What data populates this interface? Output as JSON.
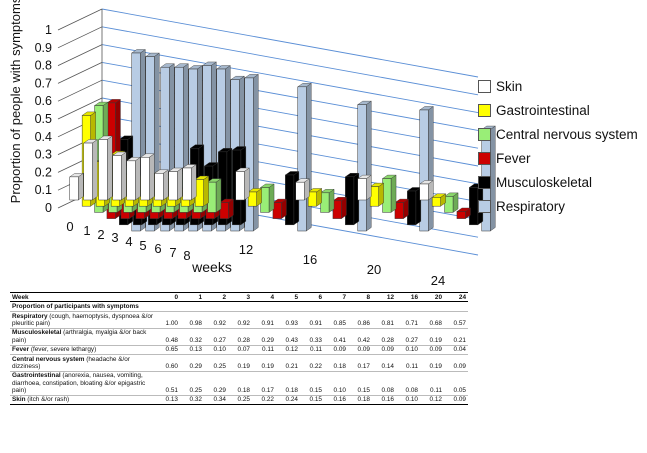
{
  "chart_data": {
    "type": "bar",
    "title": "",
    "xlabel": "weeks",
    "ylabel": "Proportion of people with symptoms",
    "ylim": [
      0,
      1
    ],
    "yticks": [
      "0",
      "0.1",
      "0.2",
      "0.3",
      "0.4",
      "0.5",
      "0.6",
      "0.7",
      "0.8",
      "0.9",
      "1"
    ],
    "categories": [
      "0",
      "1",
      "2",
      "3",
      "4",
      "5",
      "6",
      "7",
      "8",
      "12",
      "16",
      "20",
      "24"
    ],
    "legend_position": "right",
    "series": [
      {
        "name": "Skin",
        "color": "#ffffff",
        "values": [
          0.13,
          0.32,
          0.34,
          0.25,
          0.22,
          0.24,
          0.15,
          0.16,
          0.18,
          0.16,
          0.1,
          0.12,
          0.09
        ]
      },
      {
        "name": "Gastrointestinal",
        "color": "#ffff00",
        "values": [
          0.51,
          0.25,
          0.29,
          0.18,
          0.17,
          0.18,
          0.15,
          0.1,
          0.15,
          0.08,
          0.08,
          0.11,
          0.05
        ]
      },
      {
        "name": "Central nervous system",
        "color": "#99ee77",
        "values": [
          0.6,
          0.29,
          0.25,
          0.19,
          0.19,
          0.21,
          0.22,
          0.18,
          0.17,
          0.14,
          0.11,
          0.19,
          0.09
        ]
      },
      {
        "name": "Fever",
        "color": "#cc0000",
        "values": [
          0.65,
          0.13,
          0.1,
          0.07,
          0.11,
          0.12,
          0.11,
          0.09,
          0.09,
          0.09,
          0.1,
          0.09,
          0.04
        ]
      },
      {
        "name": "Musculoskeletal",
        "color": "#000000",
        "values": [
          0.48,
          0.32,
          0.27,
          0.28,
          0.29,
          0.43,
          0.33,
          0.41,
          0.42,
          0.28,
          0.27,
          0.19,
          0.21
        ]
      },
      {
        "name": "Respiratory",
        "color": "#b8cce4",
        "values": [
          1.0,
          0.98,
          0.92,
          0.92,
          0.91,
          0.93,
          0.91,
          0.85,
          0.86,
          0.81,
          0.71,
          0.68,
          0.57
        ]
      }
    ]
  },
  "table": {
    "header": [
      "Week",
      "0",
      "1",
      "2",
      "3",
      "4",
      "5",
      "6",
      "7",
      "8",
      "12",
      "16",
      "20",
      "24"
    ],
    "section_title": "Proportion of participants with symptoms",
    "rows": [
      {
        "name": "Respiratory",
        "desc": " (cough, haemoptysis, dyspnoea &/or pleuritic pain)",
        "values": [
          "1.00",
          "0.98",
          "0.92",
          "0.92",
          "0.91",
          "0.93",
          "0.91",
          "0.85",
          "0.86",
          "0.81",
          "0.71",
          "0.68",
          "0.57"
        ]
      },
      {
        "name": "Musculoskeletal",
        "desc": " (arthralgia, myalgia &/or back pain)",
        "values": [
          "0.48",
          "0.32",
          "0.27",
          "0.28",
          "0.29",
          "0.43",
          "0.33",
          "0.41",
          "0.42",
          "0.28",
          "0.27",
          "0.19",
          "0.21"
        ]
      },
      {
        "name": "Fever",
        "desc": " (fever, severe lethargy)",
        "values": [
          "0.65",
          "0.13",
          "0.10",
          "0.07",
          "0.11",
          "0.12",
          "0.11",
          "0.09",
          "0.09",
          "0.09",
          "0.10",
          "0.09",
          "0.04"
        ]
      },
      {
        "name": "Central nervous system",
        "desc": " (headache &/or dizziness)",
        "values": [
          "0.60",
          "0.29",
          "0.25",
          "0.19",
          "0.19",
          "0.21",
          "0.22",
          "0.18",
          "0.17",
          "0.14",
          "0.11",
          "0.19",
          "0.09"
        ]
      },
      {
        "name": "Gastrointestinal",
        "desc": " (anorexia, nausea, vomiting, diarrhoea, constipation, bloating &/or epigastric pain)",
        "values": [
          "0.51",
          "0.25",
          "0.29",
          "0.18",
          "0.17",
          "0.18",
          "0.15",
          "0.10",
          "0.15",
          "0.08",
          "0.08",
          "0.11",
          "0.05"
        ]
      },
      {
        "name": "Skin",
        "desc": " (itch &/or rash)",
        "values": [
          "0.13",
          "0.32",
          "0.34",
          "0.25",
          "0.22",
          "0.24",
          "0.15",
          "0.16",
          "0.18",
          "0.16",
          "0.10",
          "0.12",
          "0.09"
        ]
      }
    ]
  }
}
